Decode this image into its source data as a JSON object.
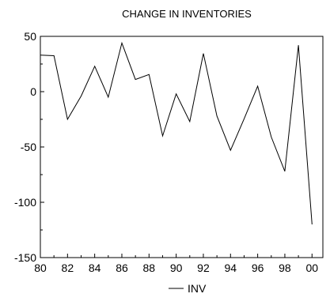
{
  "chart_data": {
    "type": "line",
    "title": "CHANGE IN INVENTORIES",
    "x": [
      1980,
      1981,
      1982,
      1983,
      1984,
      1985,
      1986,
      1987,
      1988,
      1989,
      1990,
      1991,
      1992,
      1993,
      1994,
      1995,
      1996,
      1997,
      1998,
      1999,
      2000
    ],
    "series": [
      {
        "name": "INV",
        "values": [
          33,
          32.5,
          -25,
          -4,
          23,
          -5,
          44,
          11,
          15.5,
          -40,
          -2,
          -27,
          34.5,
          -22,
          -53,
          -24.5,
          5,
          -41,
          -72,
          42,
          -120
        ]
      }
    ],
    "xlim": [
      1980,
      2000.8
    ],
    "ylim": [
      -150,
      50
    ],
    "xticks": [
      1980,
      1982,
      1984,
      1986,
      1988,
      1990,
      1992,
      1994,
      1996,
      1998,
      2000
    ],
    "xtick_labels": [
      "80",
      "82",
      "84",
      "86",
      "88",
      "90",
      "92",
      "94",
      "96",
      "98",
      "00"
    ],
    "yticks": [
      50,
      0,
      -50,
      -100,
      -150
    ],
    "ytick_labels": [
      "50",
      "0",
      "-50",
      "-100",
      "-150"
    ],
    "grid": false,
    "legend_position": "bottom-center",
    "line_color": "#000000"
  }
}
